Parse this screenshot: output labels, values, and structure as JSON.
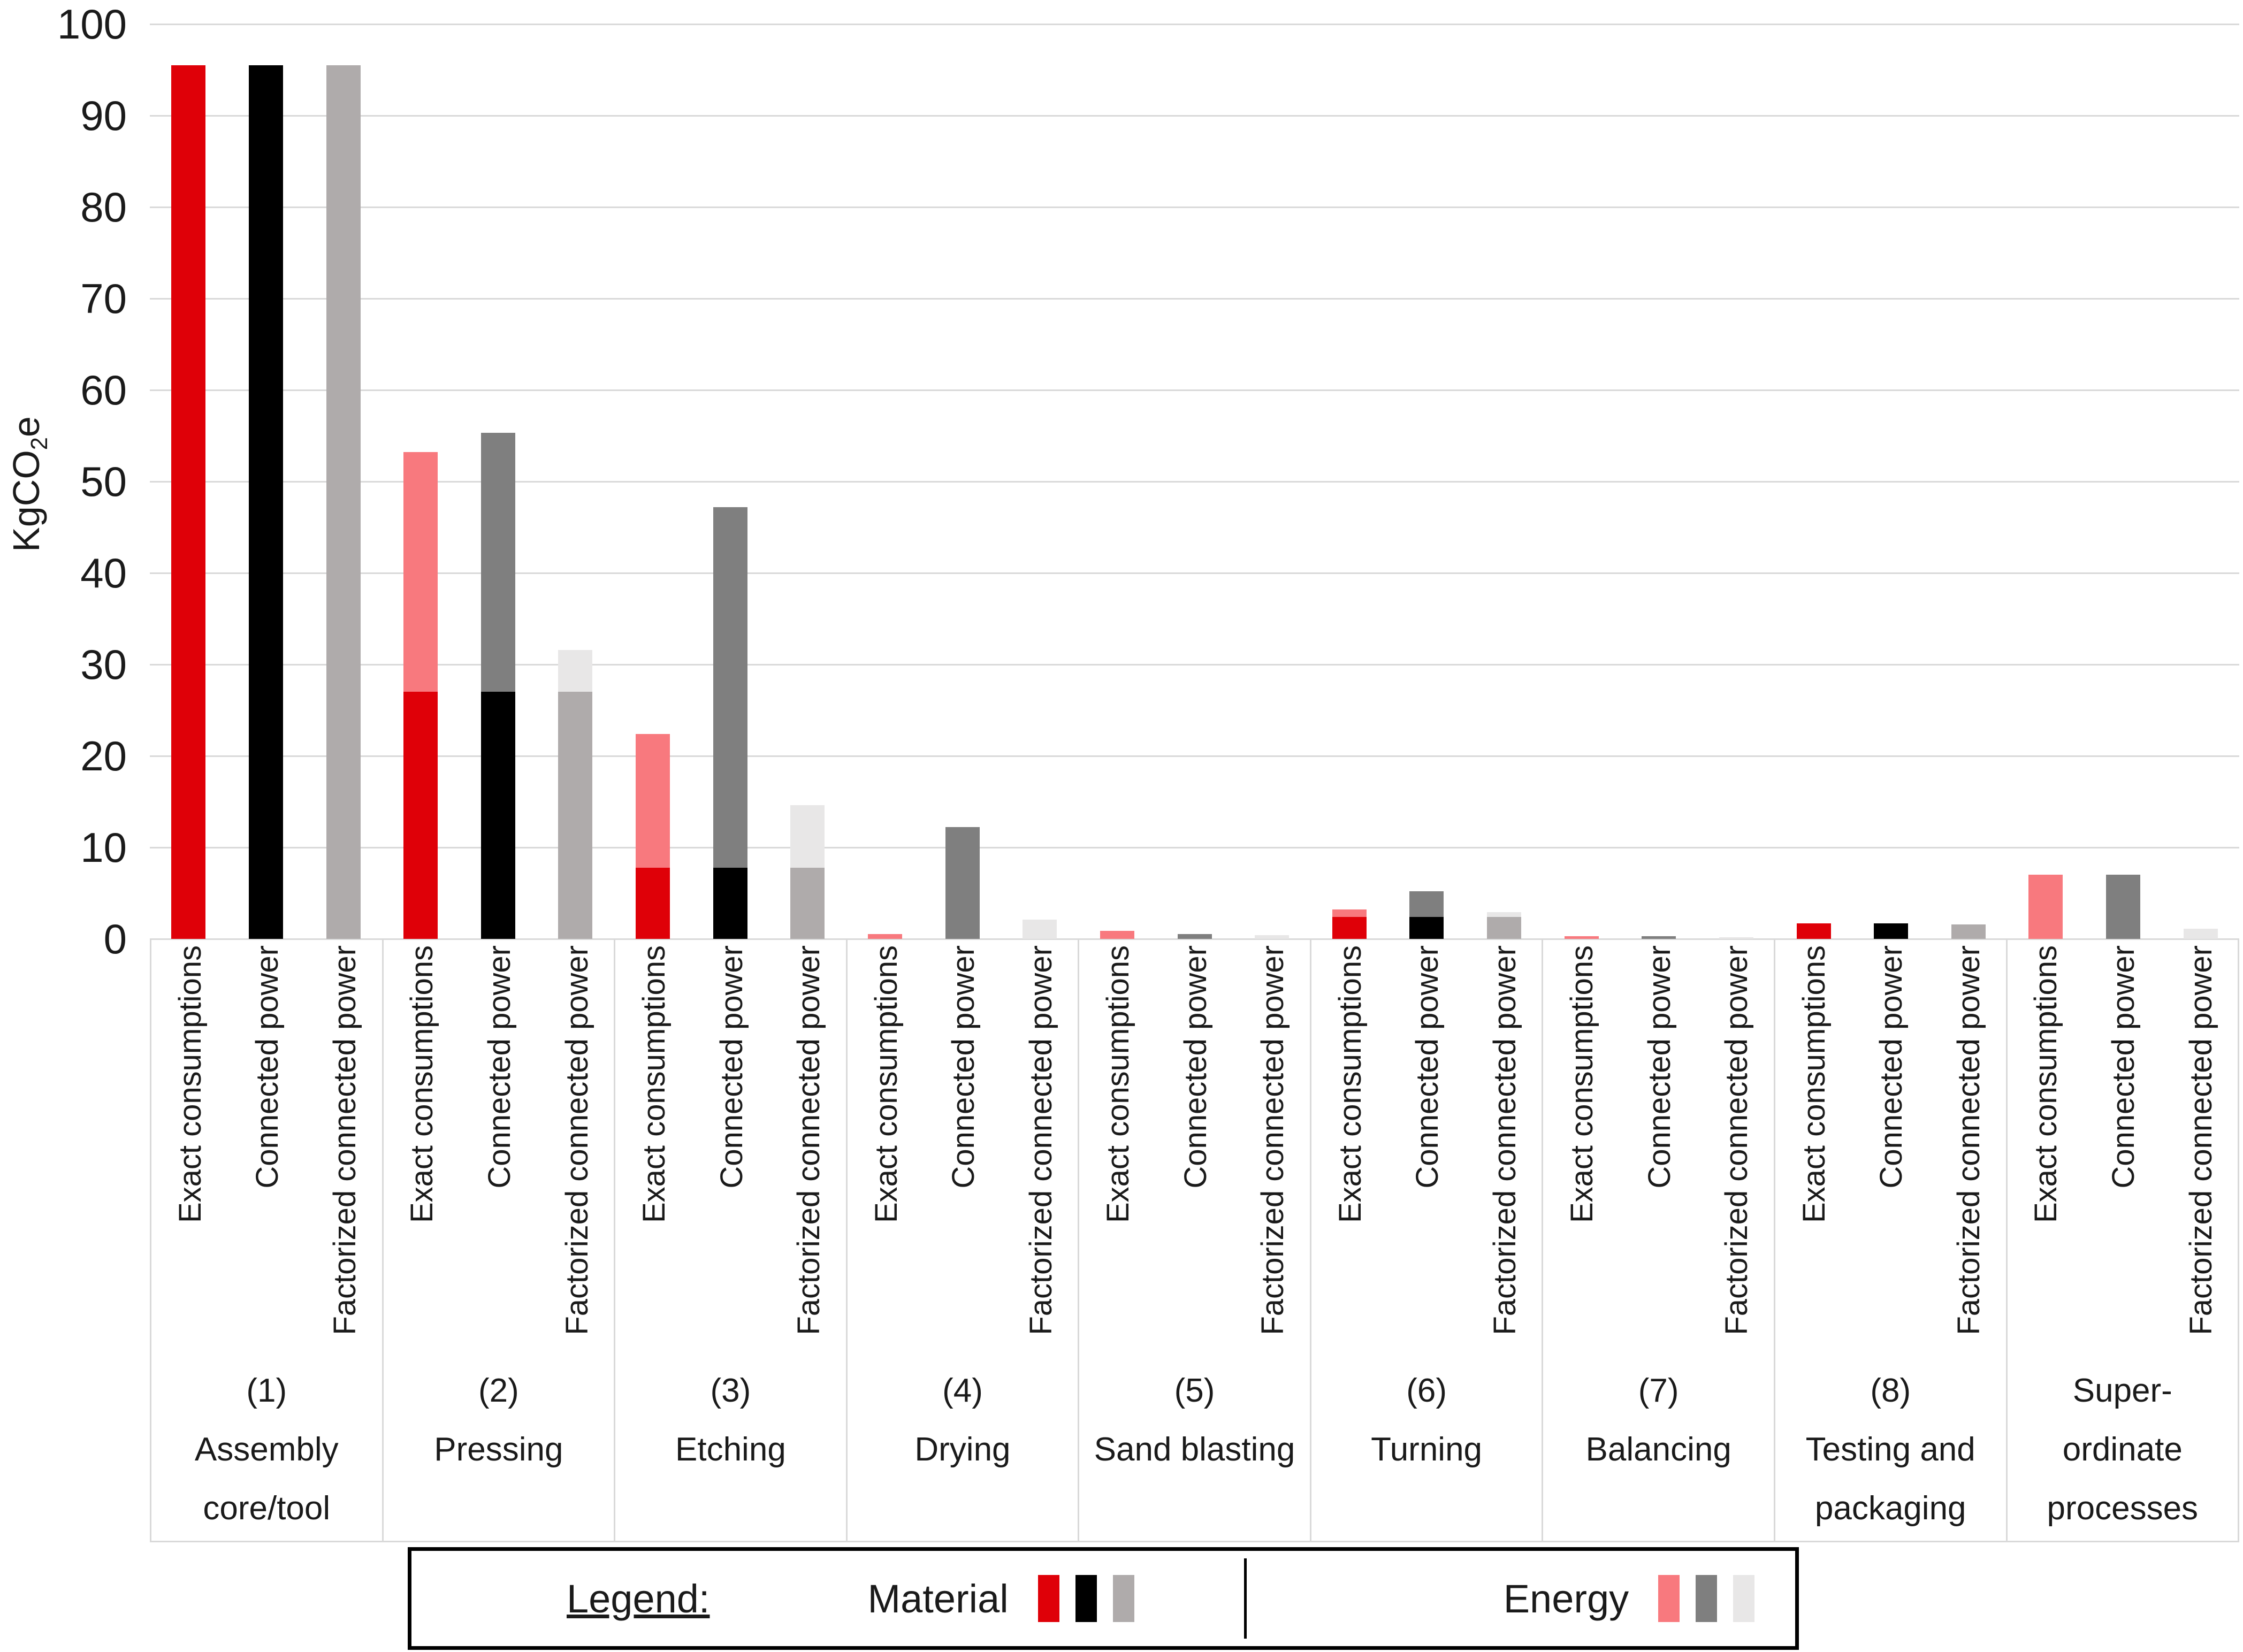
{
  "y_axis": {
    "title_pre": "KgCO",
    "title_sub": "2",
    "title_post": "e",
    "ticks": [
      0,
      10,
      20,
      30,
      40,
      50,
      60,
      70,
      80,
      90,
      100
    ],
    "max": 100
  },
  "bar_labels": [
    "Exact consumptions",
    "Connected power",
    "Factorized connected power"
  ],
  "legend": {
    "title": "Legend:",
    "material_label": "Material",
    "energy_label": "Energy"
  },
  "colors": {
    "material": [
      "#df0008",
      "#000000",
      "#afabab"
    ],
    "energy": [
      "#f8797e",
      "#7f7f7f",
      "#e8e7e7"
    ],
    "gridline": "#d9d9d9",
    "cell_border": "#d9d9d9",
    "legend_border": "#000000",
    "text": "#1a1a1a"
  },
  "chart_data": {
    "type": "bar",
    "stacked": true,
    "ylabel": "KgCO2e",
    "ylim": [
      0,
      100
    ],
    "ytick_interval": 10,
    "grid": "horizontal",
    "legend_position": "bottom",
    "bar_series_labels": [
      "Exact consumptions",
      "Connected power",
      "Factorized connected power"
    ],
    "stack_components": [
      "Material",
      "Energy"
    ],
    "groups": [
      {
        "label_lines": [
          "(1)",
          "Assembly",
          "core/tool"
        ],
        "material": [
          95.5,
          95.5,
          95.5
        ],
        "energy": [
          0,
          0,
          0
        ]
      },
      {
        "label_lines": [
          "(2)",
          "Pressing"
        ],
        "material": [
          27,
          27,
          27
        ],
        "energy": [
          26.2,
          28.3,
          4.6
        ]
      },
      {
        "label_lines": [
          "(3)",
          "Etching"
        ],
        "material": [
          7.8,
          7.8,
          7.8
        ],
        "energy": [
          14.6,
          39.4,
          6.8
        ]
      },
      {
        "label_lines": [
          "(4)",
          "Drying"
        ],
        "material": [
          0,
          0,
          0
        ],
        "energy": [
          0.5,
          12.2,
          2.1
        ]
      },
      {
        "label_lines": [
          "(5)",
          "Sand blasting"
        ],
        "material": [
          0,
          0,
          0
        ],
        "energy": [
          0.9,
          0.5,
          0.4
        ]
      },
      {
        "label_lines": [
          "(6)",
          "Turning"
        ],
        "material": [
          2.4,
          2.4,
          2.4
        ],
        "energy": [
          0.8,
          2.8,
          0.5
        ]
      },
      {
        "label_lines": [
          "(7)",
          "Balancing"
        ],
        "material": [
          0,
          0,
          0
        ],
        "energy": [
          0.3,
          0.3,
          0.15
        ]
      },
      {
        "label_lines": [
          "(8)",
          "Testing and",
          "packaging"
        ],
        "material": [
          1.7,
          1.7,
          1.6
        ],
        "energy": [
          0,
          0,
          0
        ]
      },
      {
        "label_lines": [
          "Super-",
          "ordinate",
          "processes"
        ],
        "material": [
          0,
          0,
          0
        ],
        "energy": [
          7.0,
          7.0,
          1.1
        ]
      }
    ]
  }
}
